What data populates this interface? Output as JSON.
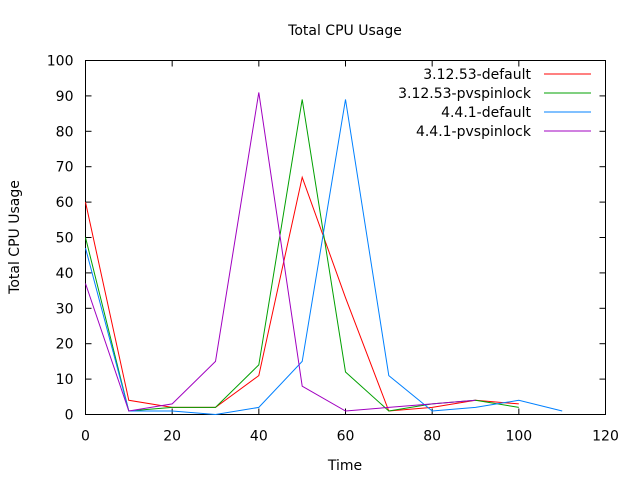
{
  "chart_data": {
    "type": "line",
    "title": "Total CPU Usage",
    "xlabel": "Time",
    "ylabel": "Total CPU Usage",
    "xlim": [
      0,
      120
    ],
    "ylim": [
      0,
      100
    ],
    "xticks": [
      0,
      20,
      40,
      60,
      80,
      100,
      120
    ],
    "yticks": [
      0,
      10,
      20,
      30,
      40,
      50,
      60,
      70,
      80,
      90,
      100
    ],
    "grid": false,
    "legend_position": "top-right",
    "series": [
      {
        "name": "3.12.53-default",
        "color": "#ff0000",
        "points": [
          [
            0,
            60
          ],
          [
            10,
            4
          ],
          [
            20,
            2
          ],
          [
            30,
            2
          ],
          [
            40,
            11
          ],
          [
            50,
            67
          ],
          [
            60,
            33
          ],
          [
            70,
            1
          ],
          [
            80,
            2
          ],
          [
            90,
            4
          ],
          [
            100,
            3
          ]
        ]
      },
      {
        "name": "3.12.53-pvspinlock",
        "color": "#00a000",
        "points": [
          [
            0,
            50
          ],
          [
            10,
            1
          ],
          [
            20,
            2
          ],
          [
            30,
            2
          ],
          [
            40,
            14
          ],
          [
            50,
            89
          ],
          [
            60,
            12
          ],
          [
            70,
            1
          ],
          [
            80,
            3
          ],
          [
            90,
            4
          ],
          [
            100,
            2
          ]
        ]
      },
      {
        "name": "4.4.1-default",
        "color": "#0080ff",
        "points": [
          [
            0,
            47
          ],
          [
            10,
            1
          ],
          [
            20,
            1
          ],
          [
            30,
            0
          ],
          [
            40,
            2
          ],
          [
            50,
            15
          ],
          [
            60,
            89
          ],
          [
            70,
            11
          ],
          [
            80,
            1
          ],
          [
            90,
            2
          ],
          [
            100,
            4
          ],
          [
            110,
            1
          ]
        ]
      },
      {
        "name": "4.4.1-pvspinlock",
        "color": "#a000c0",
        "points": [
          [
            0,
            37
          ],
          [
            10,
            1
          ],
          [
            20,
            3
          ],
          [
            30,
            15
          ],
          [
            40,
            91
          ],
          [
            50,
            8
          ],
          [
            60,
            1
          ],
          [
            70,
            2
          ],
          [
            80,
            3
          ],
          [
            90,
            4
          ]
        ]
      }
    ]
  }
}
